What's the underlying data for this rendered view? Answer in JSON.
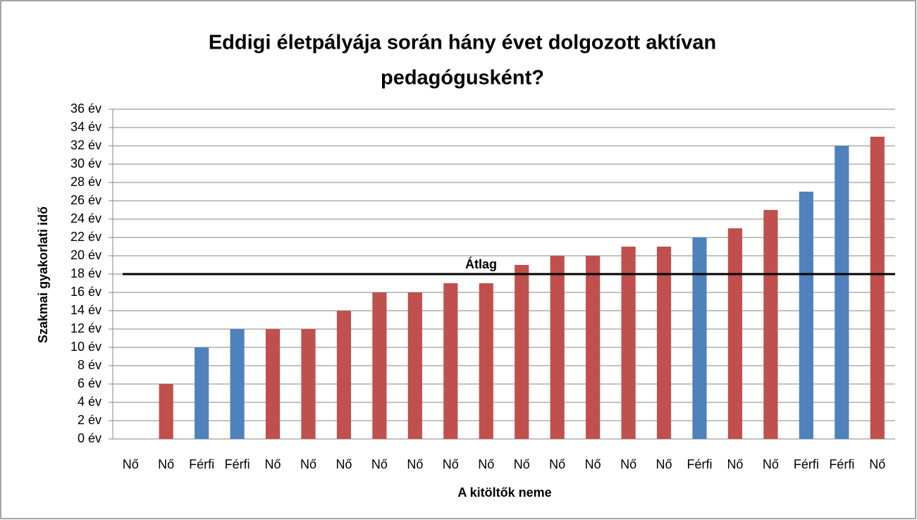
{
  "chart_data": {
    "type": "bar",
    "title": [
      "Eddigi életpályája során hány évet dolgozott aktívan",
      "pedagógusként?"
    ],
    "xlabel": "A kitöltők neme",
    "ylabel": "Szakmai gyakorlati idő",
    "categories": [
      "Nő",
      "Nő",
      "Férfi",
      "Férfi",
      "Nő",
      "Nő",
      "Nő",
      "Nő",
      "Nő",
      "Nő",
      "Nő",
      "Nő",
      "Nő",
      "Nő",
      "Nő",
      "Nő",
      "Férfi",
      "Nő",
      "Nő",
      "Férfi",
      "Férfi",
      "Nő"
    ],
    "values": [
      0,
      6,
      10,
      12,
      12,
      12,
      14,
      16,
      16,
      17,
      17,
      19,
      20,
      20,
      21,
      21,
      22,
      23,
      25,
      27,
      32,
      33
    ],
    "colors": {
      "Nő": "#c0504d",
      "Férfi": "#4f81bd"
    },
    "ylim": [
      0,
      36
    ],
    "yticks": [
      {
        "value": 0,
        "label": "0 év"
      },
      {
        "value": 2,
        "label": "2 év"
      },
      {
        "value": 4,
        "label": "4 év"
      },
      {
        "value": 6,
        "label": "6 év"
      },
      {
        "value": 8,
        "label": "8 év"
      },
      {
        "value": 10,
        "label": "10 év"
      },
      {
        "value": 12,
        "label": "12 év"
      },
      {
        "value": 14,
        "label": "14 év"
      },
      {
        "value": 16,
        "label": "16 év"
      },
      {
        "value": 18,
        "label": "18 év"
      },
      {
        "value": 20,
        "label": "20 év"
      },
      {
        "value": 22,
        "label": "22 év"
      },
      {
        "value": 24,
        "label": "24 év"
      },
      {
        "value": 26,
        "label": "26 év"
      },
      {
        "value": 28,
        "label": "28 év"
      },
      {
        "value": 30,
        "label": "30 év"
      },
      {
        "value": 32,
        "label": "32 év"
      },
      {
        "value": 34,
        "label": "34 év"
      },
      {
        "value": 36,
        "label": "36 év"
      }
    ],
    "grid": true,
    "average_line": {
      "label": "Átlag",
      "value": 18
    }
  }
}
